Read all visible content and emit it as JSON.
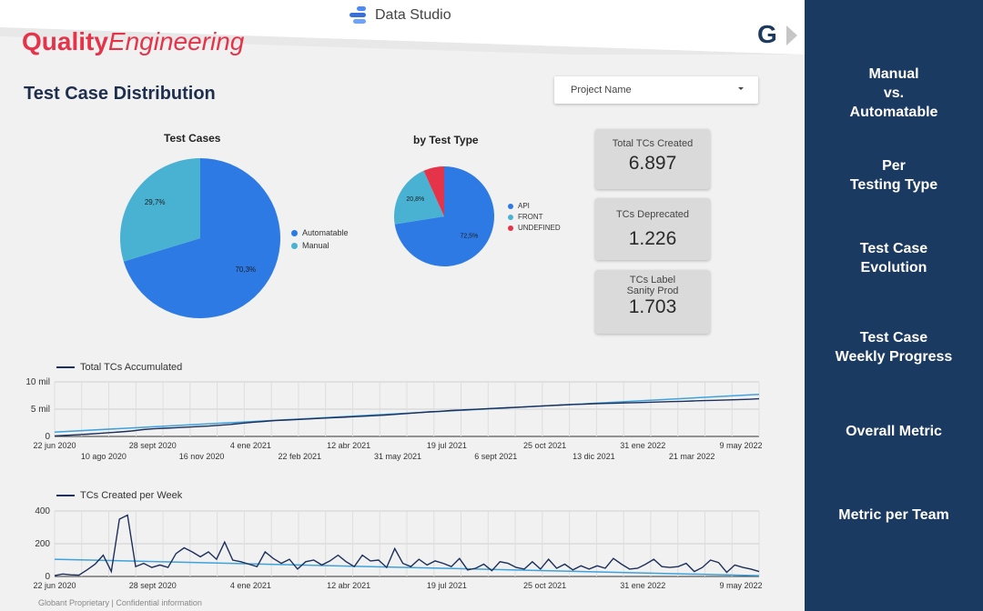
{
  "app": {
    "title": "Data Studio",
    "brand_bold": "Quality",
    "brand_italic": "Engineering",
    "logo_letter": "G"
  },
  "page": {
    "title": "Test Case Distribution",
    "filter_label": "Project Name",
    "footer": "Globant Proprietary | Confidential information"
  },
  "pie_cases": {
    "title": "Test Cases",
    "slices": [
      {
        "label": "Automatable",
        "value": 70.3,
        "text": "70,3%",
        "color": "#2d7ae5"
      },
      {
        "label": "Manual",
        "value": 29.7,
        "text": "29,7%",
        "color": "#49b1d2"
      }
    ]
  },
  "pie_type": {
    "title": "by Test Type",
    "slices": [
      {
        "label": "API",
        "value": 72.5,
        "text": "72,5%",
        "color": "#2d7ae5"
      },
      {
        "label": "FRONT",
        "value": 20.8,
        "text": "20,8%",
        "color": "#49b1d2"
      },
      {
        "label": "UNDEFINED",
        "value": 6.7,
        "text": "",
        "color": "#e5344a"
      }
    ]
  },
  "kpis": [
    {
      "label": "Total TCs Created",
      "value": "6.897"
    },
    {
      "label": "TCs Deprecated",
      "value": "1.226"
    },
    {
      "label_1": "TCs Label",
      "label_2": "Sanity Prod",
      "value": "1.703"
    }
  ],
  "colors": {
    "sidebar": "#1b3a62",
    "primary_line": "#1d2f5a",
    "trend_line": "#3fa2db",
    "brand": "#e5344a"
  },
  "sidebar": {
    "items": [
      {
        "line1": "Manual",
        "line2": "vs.",
        "line3": "Automatable"
      },
      {
        "line1": "Per",
        "line2": "Testing Type"
      },
      {
        "line1": "Test Case",
        "line2": "Evolution"
      },
      {
        "line1": "Test Case",
        "line2": "Weekly Progress"
      },
      {
        "line1": "Overall Metric"
      },
      {
        "line1": "Metric per Team"
      }
    ]
  },
  "chart_data": [
    {
      "type": "pie",
      "title": "Test Cases",
      "labels": [
        "Automatable",
        "Manual"
      ],
      "values": [
        70.3,
        29.7
      ]
    },
    {
      "type": "pie",
      "title": "by Test Type",
      "labels": [
        "API",
        "FRONT",
        "UNDEFINED"
      ],
      "values": [
        72.5,
        20.8,
        6.7
      ]
    },
    {
      "type": "line",
      "series_name": "Total TCs Accumulated",
      "y_ticks": [
        "0",
        "5 mil",
        "10 mil"
      ],
      "ylim": [
        0,
        10000
      ],
      "x_ticks_top": [
        "22 jun 2020",
        "28 sept 2020",
        "4 ene 2021",
        "12 abr 2021",
        "19 jul 2021",
        "25 oct 2021",
        "31 ene 2022",
        "9 may 2022"
      ],
      "x_ticks_bottom": [
        "10 ago 2020",
        "16 nov 2020",
        "22 feb 2021",
        "31 may 2021",
        "6 sept 2021",
        "13 dic 2021",
        "21 mar 2022"
      ],
      "values": [
        100,
        200,
        300,
        420,
        550,
        700,
        830,
        1000,
        1250,
        1400,
        1500,
        1600,
        1700,
        1800,
        1900,
        2050,
        2200,
        2400,
        2600,
        2750,
        2900,
        3000,
        3100,
        3200,
        3300,
        3400,
        3500,
        3600,
        3700,
        3800,
        3900,
        4050,
        4200,
        4350,
        4500,
        4600,
        4750,
        4850,
        4950,
        5050,
        5150,
        5250,
        5350,
        5450,
        5550,
        5650,
        5750,
        5850,
        5900,
        6000,
        6050,
        6100,
        6150,
        6200,
        6260,
        6320,
        6380,
        6440,
        6500,
        6560,
        6620,
        6680,
        6740,
        6800,
        6897
      ],
      "trend": [
        800,
        7700
      ],
      "grid": true
    },
    {
      "type": "line",
      "series_name": "TCs Created per Week",
      "y_ticks": [
        "0",
        "200",
        "400"
      ],
      "ylim": [
        0,
        400
      ],
      "x_ticks": [
        "22 jun 2020",
        "28 sept 2020",
        "4 ene 2021",
        "12 abr 2021",
        "19 jul 2021",
        "25 oct 2021",
        "31 ene 2022",
        "9 may 2022"
      ],
      "values": [
        5,
        15,
        10,
        8,
        40,
        75,
        130,
        30,
        350,
        375,
        60,
        80,
        55,
        70,
        55,
        140,
        175,
        150,
        120,
        150,
        105,
        210,
        100,
        90,
        75,
        60,
        150,
        110,
        80,
        105,
        45,
        90,
        100,
        70,
        95,
        130,
        90,
        60,
        130,
        95,
        100,
        55,
        170,
        80,
        60,
        105,
        70,
        95,
        80,
        60,
        110,
        40,
        50,
        75,
        35,
        90,
        80,
        55,
        45,
        90,
        45,
        105,
        50,
        75,
        40,
        65,
        45,
        65,
        50,
        110,
        75,
        45,
        50,
        75,
        105,
        60,
        55,
        60,
        80,
        30,
        55,
        100,
        85,
        25,
        70,
        55,
        45,
        30
      ],
      "trend": [
        105,
        5
      ],
      "grid": true
    }
  ]
}
